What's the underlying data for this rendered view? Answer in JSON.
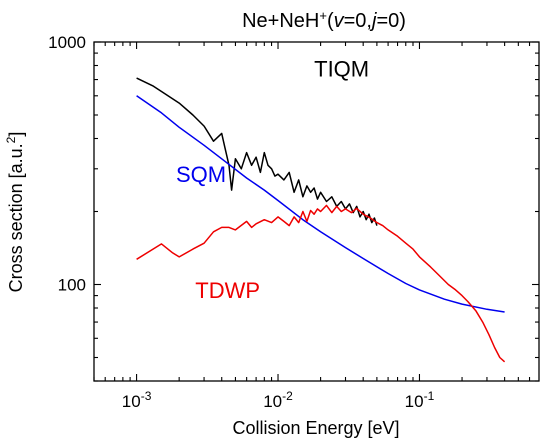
{
  "chart_data": {
    "type": "line",
    "title_parts": [
      {
        "text": "Ne+NeH",
        "style": "normal"
      },
      {
        "text": "+",
        "style": "sup"
      },
      {
        "text": "(",
        "style": "normal"
      },
      {
        "text": "v",
        "style": "italic"
      },
      {
        "text": "=0,",
        "style": "normal"
      },
      {
        "text": "j",
        "style": "italic"
      },
      {
        "text": "=0)",
        "style": "normal"
      }
    ],
    "xlabel": "Collision Energy [eV]",
    "ylabel_parts": [
      {
        "text": "Cross section [a.u.",
        "style": "normal"
      },
      {
        "text": "2",
        "style": "sup"
      },
      {
        "text": "]",
        "style": "normal"
      }
    ],
    "xscale": "log",
    "yscale": "log",
    "xlim": [
      0.0005,
      0.7
    ],
    "ylim": [
      40,
      1000
    ],
    "grid": false,
    "x_ticks": [
      {
        "value": 0.001,
        "base": "10",
        "exp": "-3"
      },
      {
        "value": 0.01,
        "base": "10",
        "exp": "-2"
      },
      {
        "value": 0.1,
        "base": "10",
        "exp": "-1"
      }
    ],
    "y_ticks": [
      {
        "value": 100,
        "label": "100"
      },
      {
        "value": 1000,
        "label": "1000"
      }
    ],
    "series": [
      {
        "name": "TIQM",
        "color": "#000000",
        "label_at": [
          0.018,
          720
        ],
        "x": [
          0.001,
          0.0013,
          0.0016,
          0.002,
          0.0025,
          0.003,
          0.0035,
          0.004,
          0.0042,
          0.0045,
          0.0047,
          0.005,
          0.0055,
          0.006,
          0.0065,
          0.007,
          0.0075,
          0.008,
          0.0085,
          0.009,
          0.0095,
          0.01,
          0.011,
          0.012,
          0.013,
          0.014,
          0.015,
          0.016,
          0.017,
          0.018,
          0.019,
          0.02,
          0.022,
          0.024,
          0.026,
          0.028,
          0.03,
          0.032,
          0.034,
          0.036,
          0.038,
          0.04,
          0.042,
          0.044,
          0.046,
          0.048,
          0.05
        ],
        "y": [
          710,
          660,
          610,
          560,
          500,
          450,
          390,
          420,
          370,
          310,
          245,
          330,
          300,
          350,
          310,
          335,
          290,
          350,
          310,
          300,
          280,
          285,
          270,
          290,
          240,
          270,
          230,
          255,
          240,
          250,
          225,
          240,
          220,
          230,
          210,
          220,
          205,
          215,
          198,
          210,
          190,
          200,
          185,
          195,
          180,
          188,
          175
        ]
      },
      {
        "name": "SQM",
        "color": "#0000ee",
        "label_at": [
          0.0019,
          265
        ],
        "x": [
          0.001,
          0.0015,
          0.002,
          0.003,
          0.004,
          0.006,
          0.008,
          0.01,
          0.015,
          0.02,
          0.03,
          0.04,
          0.06,
          0.08,
          0.1,
          0.15,
          0.2,
          0.3,
          0.4
        ],
        "y": [
          600,
          510,
          445,
          375,
          330,
          275,
          245,
          222,
          185,
          165,
          142,
          128,
          111,
          101,
          95,
          87,
          83,
          79,
          77
        ]
      },
      {
        "name": "TDWP",
        "color": "#ee0000",
        "label_at": [
          0.0026,
          88
        ],
        "x": [
          0.001,
          0.0015,
          0.0018,
          0.002,
          0.0025,
          0.003,
          0.0035,
          0.004,
          0.0045,
          0.005,
          0.006,
          0.0065,
          0.007,
          0.008,
          0.009,
          0.01,
          0.011,
          0.012,
          0.013,
          0.014,
          0.015,
          0.016,
          0.017,
          0.018,
          0.019,
          0.02,
          0.022,
          0.024,
          0.026,
          0.028,
          0.03,
          0.033,
          0.036,
          0.04,
          0.045,
          0.05,
          0.055,
          0.06,
          0.07,
          0.08,
          0.09,
          0.1,
          0.12,
          0.14,
          0.16,
          0.18,
          0.2,
          0.22,
          0.25,
          0.28,
          0.31,
          0.34,
          0.37,
          0.4
        ],
        "y": [
          127,
          147,
          135,
          130,
          140,
          148,
          165,
          172,
          172,
          168,
          182,
          172,
          178,
          185,
          180,
          190,
          182,
          175,
          190,
          180,
          200,
          182,
          202,
          195,
          205,
          200,
          212,
          198,
          210,
          200,
          205,
          198,
          206,
          195,
          188,
          180,
          175,
          168,
          158,
          148,
          140,
          130,
          118,
          108,
          100,
          95,
          90,
          85,
          78,
          70,
          62,
          55,
          50,
          48
        ]
      }
    ]
  }
}
